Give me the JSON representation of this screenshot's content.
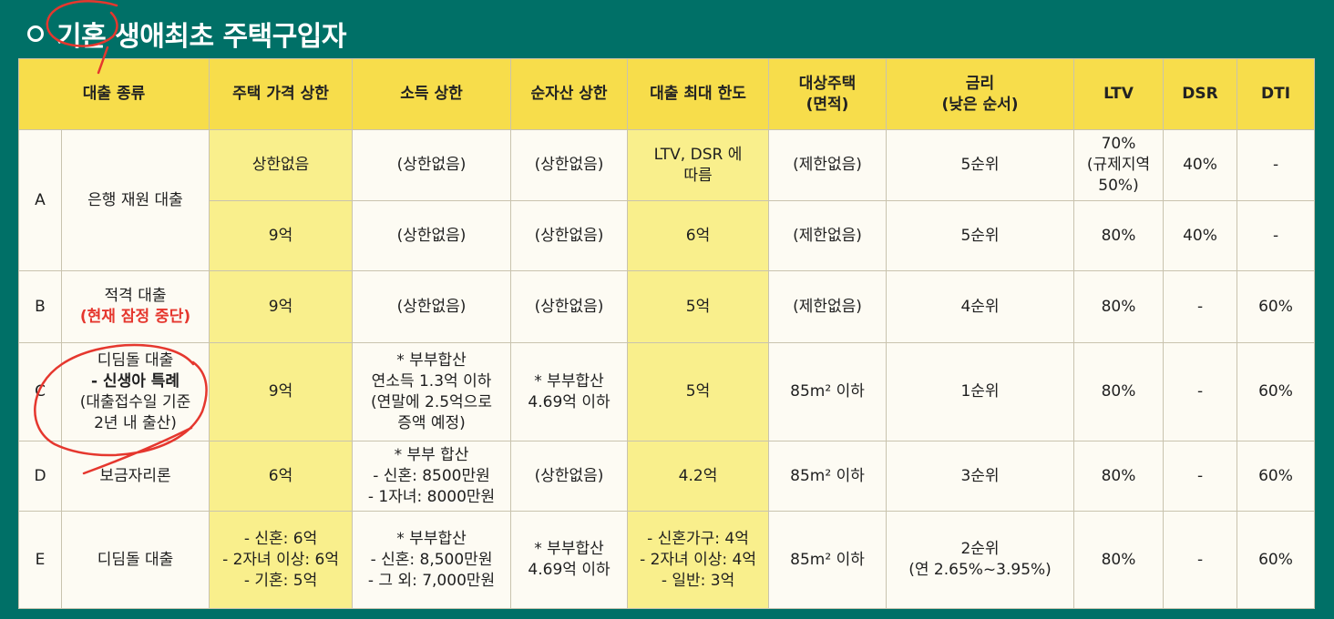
{
  "title": "기혼 생애최초 주택구입자",
  "header": {
    "loan_type": "대출 종류",
    "price_cap": "주택 가격 상한",
    "income_cap": "소득 상한",
    "asset_cap": "순자산 상한",
    "max_loan": "대출 최대 한도",
    "target_house": [
      "대상주택",
      "(면적)"
    ],
    "rate": [
      "금리",
      "(낮은 순서)"
    ],
    "ltv": "LTV",
    "dsr": "DSR",
    "dti": "DTI"
  },
  "rows": {
    "a": {
      "code": "A",
      "name": "은행 재원 대출",
      "r1": {
        "price": "상한없음",
        "income": "(상한없음)",
        "asset": "(상한없음)",
        "max": [
          "LTV, DSR 에",
          "따름"
        ],
        "house": "(제한없음)",
        "rate": "5순위",
        "ltv": [
          "70%",
          "(규제지역",
          "50%)"
        ],
        "dsr": "40%",
        "dti": "-"
      },
      "r2": {
        "price": "9억",
        "income": "(상한없음)",
        "asset": "(상한없음)",
        "max": "6억",
        "house": "(제한없음)",
        "rate": "5순위",
        "ltv": "80%",
        "dsr": "40%",
        "dti": "-"
      }
    },
    "b": {
      "code": "B",
      "name": "적격 대출",
      "note": "(현재 잠정 중단)",
      "price": "9억",
      "income": "(상한없음)",
      "asset": "(상한없음)",
      "max": "5억",
      "house": "(제한없음)",
      "rate": "4순위",
      "ltv": "80%",
      "dsr": "-",
      "dti": "60%"
    },
    "c": {
      "code": "C",
      "name": [
        "디딤돌 대출",
        "- 신생아 특례",
        "(대출접수일 기준",
        "2년 내 출산)"
      ],
      "price": "9억",
      "income": [
        "* 부부합산",
        "연소득 1.3억 이하",
        "(연말에 2.5억으로",
        "증액 예정)"
      ],
      "asset": [
        "* 부부합산",
        "4.69억 이하"
      ],
      "max": "5억",
      "house": "85m² 이하",
      "rate": "1순위",
      "ltv": "80%",
      "dsr": "-",
      "dti": "60%"
    },
    "d": {
      "code": "D",
      "name": "보금자리론",
      "price": "6억",
      "income": [
        "* 부부 합산",
        "- 신혼: 8500만원",
        "- 1자녀: 8000만원"
      ],
      "asset": "(상한없음)",
      "max": "4.2억",
      "house": "85m² 이하",
      "rate": "3순위",
      "ltv": "80%",
      "dsr": "-",
      "dti": "60%"
    },
    "e": {
      "code": "E",
      "name": "디딤돌 대출",
      "price": [
        "- 신혼: 6억",
        "- 2자녀 이상: 6억",
        "- 기혼: 5억"
      ],
      "income": [
        "* 부부합산",
        "- 신혼: 8,500만원",
        "- 그 외: 7,000만원"
      ],
      "asset": [
        "* 부부합산",
        "4.69억 이하"
      ],
      "max": [
        "- 신혼가구: 4억",
        "- 2자녀 이상: 4억",
        "- 일반: 3억"
      ],
      "house": "85m² 이하",
      "rate": [
        "2순위",
        "(연 2.65%~3.95%)"
      ],
      "ltv": "80%",
      "dsr": "-",
      "dti": "60%"
    }
  },
  "colors": {
    "background": "#007067",
    "header_yellow": "#f7dd4b",
    "highlight_yellow": "#f9ef8c",
    "annotation_red": "#e5372e"
  }
}
